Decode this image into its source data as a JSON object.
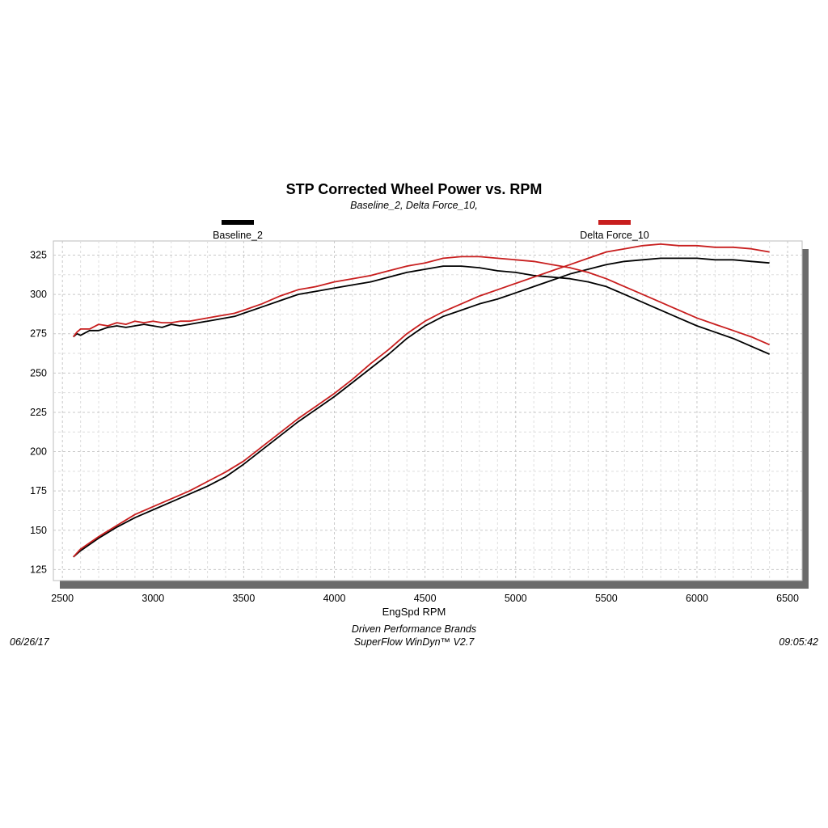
{
  "chart_data": {
    "type": "line",
    "title": "STP Corrected Wheel Power vs. RPM",
    "subtitle": "Baseline_2, Delta Force_10,",
    "xlabel": "EngSpd  RPM",
    "ylabel": "",
    "xlim": [
      2450,
      6580
    ],
    "ylim": [
      118,
      334
    ],
    "xticks": [
      2500,
      3000,
      3500,
      4000,
      4500,
      5000,
      5500,
      6000,
      6500
    ],
    "yticks": [
      125,
      150,
      175,
      200,
      225,
      250,
      275,
      300,
      325
    ],
    "grid": true,
    "legend_position": "top",
    "series": [
      {
        "name": "Baseline_2",
        "color": "#000000",
        "curves": [
          {
            "x": [
              2560,
              2580,
              2600,
              2650,
              2700,
              2750,
              2800,
              2850,
              2900,
              2950,
              3000,
              3050,
              3100,
              3150,
              3200,
              3250,
              3300,
              3350,
              3400,
              3450,
              3500,
              3600,
              3700,
              3800,
              3900,
              4000,
              4100,
              4200,
              4300,
              4400,
              4500,
              4600,
              4700,
              4800,
              4900,
              5000,
              5100,
              5200,
              5300,
              5400,
              5500,
              5600,
              5700,
              5800,
              5900,
              6000,
              6100,
              6200,
              6300,
              6400
            ],
            "y": [
              273,
              275,
              274,
              277,
              277,
              279,
              280,
              279,
              280,
              281,
              280,
              279,
              281,
              280,
              281,
              282,
              283,
              284,
              285,
              286,
              288,
              292,
              296,
              300,
              302,
              304,
              306,
              308,
              311,
              314,
              316,
              318,
              318,
              317,
              315,
              314,
              312,
              311,
              310,
              308,
              305,
              300,
              295,
              290,
              285,
              280,
              276,
              272,
              267,
              262
            ]
          },
          {
            "x": [
              2560,
              2600,
              2700,
              2800,
              2900,
              3000,
              3100,
              3200,
              3300,
              3400,
              3500,
              3600,
              3700,
              3800,
              3900,
              4000,
              4100,
              4200,
              4300,
              4400,
              4500,
              4600,
              4700,
              4800,
              4900,
              5000,
              5100,
              5200,
              5300,
              5400,
              5500,
              5600,
              5700,
              5800,
              5900,
              6000,
              6100,
              6200,
              6300,
              6400
            ],
            "y": [
              133,
              137,
              145,
              152,
              158,
              163,
              168,
              173,
              178,
              184,
              192,
              201,
              210,
              219,
              227,
              235,
              244,
              253,
              262,
              272,
              280,
              286,
              290,
              294,
              297,
              301,
              305,
              309,
              313,
              316,
              319,
              321,
              322,
              323,
              323,
              323,
              322,
              322,
              321,
              320
            ]
          }
        ]
      },
      {
        "name": "Delta Force_10",
        "color": "#c81e1e",
        "curves": [
          {
            "x": [
              2560,
              2580,
              2600,
              2650,
              2700,
              2750,
              2800,
              2850,
              2900,
              2950,
              3000,
              3050,
              3100,
              3150,
              3200,
              3250,
              3300,
              3350,
              3400,
              3450,
              3500,
              3600,
              3700,
              3800,
              3900,
              4000,
              4100,
              4200,
              4300,
              4400,
              4500,
              4600,
              4700,
              4800,
              4900,
              5000,
              5100,
              5200,
              5300,
              5400,
              5500,
              5600,
              5700,
              5800,
              5900,
              6000,
              6100,
              6200,
              6300,
              6400
            ],
            "y": [
              273,
              276,
              278,
              278,
              281,
              280,
              282,
              281,
              283,
              282,
              283,
              282,
              282,
              283,
              283,
              284,
              285,
              286,
              287,
              288,
              290,
              294,
              299,
              303,
              305,
              308,
              310,
              312,
              315,
              318,
              320,
              323,
              324,
              324,
              323,
              322,
              321,
              319,
              317,
              314,
              310,
              305,
              300,
              295,
              290,
              285,
              281,
              277,
              273,
              268
            ]
          },
          {
            "x": [
              2560,
              2600,
              2700,
              2800,
              2900,
              3000,
              3100,
              3200,
              3300,
              3400,
              3500,
              3600,
              3700,
              3800,
              3900,
              4000,
              4100,
              4200,
              4300,
              4400,
              4500,
              4600,
              4700,
              4800,
              4900,
              5000,
              5100,
              5200,
              5300,
              5400,
              5500,
              5600,
              5700,
              5800,
              5900,
              6000,
              6100,
              6200,
              6300,
              6400
            ],
            "y": [
              133,
              138,
              146,
              153,
              160,
              165,
              170,
              175,
              181,
              187,
              194,
              203,
              212,
              221,
              229,
              237,
              246,
              256,
              265,
              275,
              283,
              289,
              294,
              299,
              303,
              307,
              311,
              315,
              319,
              323,
              327,
              329,
              331,
              332,
              331,
              331,
              330,
              330,
              329,
              327
            ]
          }
        ]
      }
    ]
  },
  "footer": {
    "date": "06/26/17",
    "company": "Driven Performance Brands",
    "software": "SuperFlow WinDyn™  V2.7",
    "time": "09:05:42"
  }
}
